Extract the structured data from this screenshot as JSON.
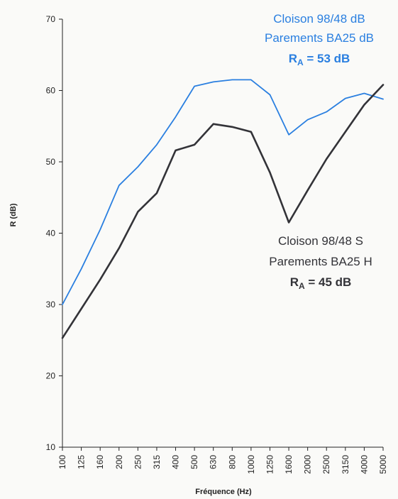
{
  "chart_data": {
    "type": "line",
    "title": "",
    "xlabel": "Fréquence (Hz)",
    "ylabel": "R (dB)",
    "ylim": [
      10,
      70
    ],
    "yticks": [
      10,
      20,
      30,
      40,
      50,
      60,
      70
    ],
    "categories": [
      "100",
      "125",
      "160",
      "200",
      "250",
      "315",
      "400",
      "500",
      "630",
      "800",
      "1000",
      "1250",
      "1600",
      "2000",
      "2500",
      "3150",
      "4000",
      "5000"
    ],
    "series": [
      {
        "name": "Cloison 98/48 dB Parements BA25 dB",
        "color": "#2a7fe0",
        "values": [
          30.0,
          35.0,
          40.5,
          46.7,
          49.3,
          52.4,
          56.3,
          60.6,
          61.2,
          61.5,
          61.5,
          59.4,
          53.8,
          55.9,
          57.0,
          58.9,
          59.6,
          58.8
        ]
      },
      {
        "name": "Cloison 98/48 S Parements BA25 H",
        "color": "#333338",
        "values": [
          25.3,
          29.4,
          33.5,
          37.9,
          43.0,
          45.6,
          51.6,
          52.4,
          55.3,
          54.9,
          54.2,
          48.5,
          41.5,
          46.0,
          50.4,
          54.2,
          58.0,
          60.8
        ]
      }
    ]
  },
  "annotations": {
    "blue": {
      "line1": "Cloison 98/48 dB",
      "line2": "Parements BA25 dB",
      "ra_main": "R",
      "ra_sub": "A",
      "ra_value": " = 53 dB",
      "color": "#2a7fe0"
    },
    "dark": {
      "line1": "Cloison 98/48 S",
      "line2": "Parements BA25 H",
      "ra_main": "R",
      "ra_sub": "A",
      "ra_value": " = 45 dB",
      "color": "#333338"
    }
  }
}
